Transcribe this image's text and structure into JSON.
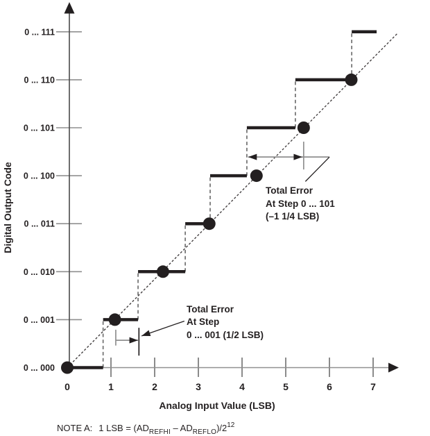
{
  "figure": {
    "background": "#ffffff",
    "ink_color": "#231f20",
    "gray_color": "#8f8f8f",
    "tick_color": "#6e6e6e",
    "riser_color": "#6f6f6f",
    "ideal_color": "#3f3b3c",
    "yaxis_color": "#4a4a4a",
    "xaxis_color": "#909090"
  },
  "chart_data": {
    "type": "line",
    "variant": "adc-transfer-staircase",
    "title": "",
    "xlabel": "Analog Input Value (LSB)",
    "ylabel": "Digital Output Code",
    "x_ticks": [
      0,
      1,
      2,
      3,
      4,
      5,
      6,
      7
    ],
    "y_tick_labels": [
      "0 ... 000",
      "0 ... 001",
      "0 ... 010",
      "0 ... 011",
      "0 ... 100",
      "0 ... 101",
      "0 ... 110",
      "0 ... 111"
    ],
    "xlim": [
      0,
      7.9
    ],
    "ylim": [
      0,
      7.6
    ],
    "staircase": {
      "transition_inputs_lsb": [
        0.82,
        1.62,
        2.7,
        3.27,
        4.11,
        5.22,
        6.51
      ],
      "last_step_end_lsb": 7.08
    },
    "midstep_points": [
      [
        0,
        0
      ],
      [
        1.09,
        1
      ],
      [
        2.19,
        2
      ],
      [
        3.25,
        3
      ],
      [
        4.33,
        4
      ],
      [
        5.41,
        5
      ],
      [
        6.5,
        6
      ]
    ],
    "ideal_line": {
      "from": [
        0,
        0
      ],
      "to": [
        7.56,
        6.97
      ]
    },
    "annotations": [
      {
        "id": "total-error-step-101",
        "lines": [
          "Total Error",
          "At Step 0 ... 101",
          "(–1 1/4 LSB)"
        ],
        "error_lsb": "-1 1/4",
        "text_pos": [
          4.54,
          3.81
        ],
        "measure": {
          "y": 4.39,
          "from": 4.14,
          "to": 5.38,
          "tail_to": 6.0,
          "heads": "both"
        },
        "markers": [
          {
            "x": 5.41,
            "y1": 4.13,
            "y2": 4.71,
            "tone": "gray"
          }
        ],
        "leader": {
          "from": [
            6.0,
            4.39
          ],
          "to": [
            5.45,
            3.88
          ],
          "arrow": false
        }
      },
      {
        "id": "total-error-step-001",
        "lines": [
          "Total Error",
          "At Step",
          "0 ... 001 (1/2 LSB)"
        ],
        "error_lsb": "1/2",
        "text_pos": [
          2.73,
          1.34
        ],
        "measure": {
          "y": 0.57,
          "from": 1.11,
          "to": 1.62,
          "tail_to": null,
          "heads": "right"
        },
        "markers": [
          {
            "x": 1.64,
            "y1": 0.25,
            "y2": 0.83,
            "tone": "ink"
          },
          {
            "x": 1.11,
            "y1": 0.46,
            "y2": 0.79,
            "tone": "gray"
          }
        ],
        "leader": {
          "from": [
            2.68,
            0.97
          ],
          "to": [
            1.7,
            0.66
          ],
          "arrow": true
        }
      }
    ],
    "note": {
      "label": "NOTE A:",
      "formula": [
        {
          "t": "1 LSB = (AD"
        },
        {
          "sub": "REFHI"
        },
        {
          "t": " – AD"
        },
        {
          "sub": "REFLO"
        },
        {
          "t": ")/2"
        },
        {
          "sup": "12"
        }
      ]
    }
  }
}
